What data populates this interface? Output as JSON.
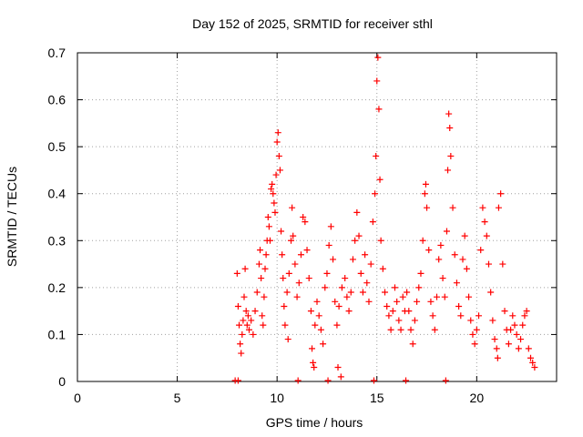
{
  "chart_data": {
    "type": "scatter",
    "title": "Day 152 of 2025, SRMTID for receiver sthl",
    "xlabel": "GPS time / hours",
    "ylabel": "SRMTID / TECUs",
    "xlim": [
      0,
      24
    ],
    "ylim": [
      0,
      0.7
    ],
    "x_ticks": [
      0,
      5,
      10,
      15,
      20
    ],
    "x_tick_labels": [
      "0",
      "5",
      "10",
      "15",
      "20"
    ],
    "y_ticks": [
      0,
      0.1,
      0.2,
      0.3,
      0.4,
      0.5,
      0.6,
      0.7
    ],
    "y_tick_labels": [
      "0",
      "0.1",
      "0.2",
      "0.3",
      "0.4",
      "0.5",
      "0.6",
      "0.7"
    ],
    "grid": true,
    "marker": "+",
    "series_color": "#ff0000",
    "series": [
      {
        "name": "SRMTID",
        "points": [
          [
            7.9,
            0.0
          ],
          [
            8.05,
            0.0
          ],
          [
            8.0,
            0.23
          ],
          [
            8.05,
            0.16
          ],
          [
            8.1,
            0.12
          ],
          [
            8.15,
            0.08
          ],
          [
            8.2,
            0.06
          ],
          [
            8.25,
            0.1
          ],
          [
            8.3,
            0.13
          ],
          [
            8.35,
            0.18
          ],
          [
            8.4,
            0.24
          ],
          [
            8.45,
            0.15
          ],
          [
            8.5,
            0.12
          ],
          [
            8.55,
            0.14
          ],
          [
            8.6,
            0.11
          ],
          [
            8.7,
            0.13
          ],
          [
            8.8,
            0.1
          ],
          [
            8.9,
            0.15
          ],
          [
            9.0,
            0.19
          ],
          [
            9.1,
            0.25
          ],
          [
            9.15,
            0.28
          ],
          [
            9.2,
            0.22
          ],
          [
            9.25,
            0.14
          ],
          [
            9.3,
            0.12
          ],
          [
            9.35,
            0.18
          ],
          [
            9.4,
            0.24
          ],
          [
            9.45,
            0.27
          ],
          [
            9.5,
            0.3
          ],
          [
            9.55,
            0.35
          ],
          [
            9.6,
            0.33
          ],
          [
            9.65,
            0.3
          ],
          [
            9.7,
            0.41
          ],
          [
            9.75,
            0.42
          ],
          [
            9.8,
            0.4
          ],
          [
            9.85,
            0.38
          ],
          [
            9.9,
            0.36
          ],
          [
            9.95,
            0.44
          ],
          [
            10.0,
            0.51
          ],
          [
            10.05,
            0.53
          ],
          [
            10.1,
            0.48
          ],
          [
            10.15,
            0.45
          ],
          [
            10.2,
            0.32
          ],
          [
            10.25,
            0.27
          ],
          [
            10.3,
            0.22
          ],
          [
            10.35,
            0.16
          ],
          [
            10.4,
            0.12
          ],
          [
            10.5,
            0.19
          ],
          [
            10.55,
            0.09
          ],
          [
            10.6,
            0.23
          ],
          [
            10.7,
            0.3
          ],
          [
            10.75,
            0.37
          ],
          [
            10.8,
            0.31
          ],
          [
            10.9,
            0.25
          ],
          [
            11.0,
            0.18
          ],
          [
            11.05,
            0.0
          ],
          [
            11.1,
            0.21
          ],
          [
            11.2,
            0.27
          ],
          [
            11.3,
            0.35
          ],
          [
            11.4,
            0.34
          ],
          [
            11.5,
            0.28
          ],
          [
            11.6,
            0.22
          ],
          [
            11.7,
            0.15
          ],
          [
            11.75,
            0.07
          ],
          [
            11.8,
            0.04
          ],
          [
            11.85,
            0.03
          ],
          [
            11.9,
            0.12
          ],
          [
            12.0,
            0.17
          ],
          [
            12.1,
            0.14
          ],
          [
            12.2,
            0.11
          ],
          [
            12.3,
            0.08
          ],
          [
            12.4,
            0.2
          ],
          [
            12.5,
            0.23
          ],
          [
            12.55,
            0.0
          ],
          [
            12.6,
            0.29
          ],
          [
            12.7,
            0.33
          ],
          [
            12.8,
            0.26
          ],
          [
            12.9,
            0.17
          ],
          [
            13.0,
            0.12
          ],
          [
            13.05,
            0.03
          ],
          [
            13.1,
            0.16
          ],
          [
            13.2,
            0.01
          ],
          [
            13.25,
            0.2
          ],
          [
            13.4,
            0.22
          ],
          [
            13.5,
            0.18
          ],
          [
            13.6,
            0.15
          ],
          [
            13.7,
            0.19
          ],
          [
            13.8,
            0.26
          ],
          [
            13.9,
            0.3
          ],
          [
            14.0,
            0.36
          ],
          [
            14.1,
            0.31
          ],
          [
            14.2,
            0.23
          ],
          [
            14.3,
            0.19
          ],
          [
            14.4,
            0.27
          ],
          [
            14.5,
            0.21
          ],
          [
            14.6,
            0.17
          ],
          [
            14.7,
            0.25
          ],
          [
            14.8,
            0.34
          ],
          [
            14.85,
            0.0
          ],
          [
            14.9,
            0.4
          ],
          [
            14.95,
            0.48
          ],
          [
            15.0,
            0.64
          ],
          [
            15.05,
            0.69
          ],
          [
            15.1,
            0.58
          ],
          [
            15.15,
            0.43
          ],
          [
            15.2,
            0.3
          ],
          [
            15.3,
            0.24
          ],
          [
            15.4,
            0.19
          ],
          [
            15.5,
            0.16
          ],
          [
            15.6,
            0.14
          ],
          [
            15.7,
            0.11
          ],
          [
            15.8,
            0.15
          ],
          [
            15.9,
            0.2
          ],
          [
            16.0,
            0.17
          ],
          [
            16.1,
            0.13
          ],
          [
            16.2,
            0.11
          ],
          [
            16.3,
            0.18
          ],
          [
            16.4,
            0.15
          ],
          [
            16.45,
            0.0
          ],
          [
            16.5,
            0.19
          ],
          [
            16.6,
            0.15
          ],
          [
            16.7,
            0.11
          ],
          [
            16.8,
            0.08
          ],
          [
            16.9,
            0.13
          ],
          [
            17.0,
            0.17
          ],
          [
            17.1,
            0.2
          ],
          [
            17.2,
            0.23
          ],
          [
            17.3,
            0.3
          ],
          [
            17.4,
            0.4
          ],
          [
            17.45,
            0.42
          ],
          [
            17.5,
            0.37
          ],
          [
            17.6,
            0.28
          ],
          [
            17.7,
            0.17
          ],
          [
            17.8,
            0.14
          ],
          [
            17.9,
            0.11
          ],
          [
            18.0,
            0.18
          ],
          [
            18.1,
            0.26
          ],
          [
            18.2,
            0.29
          ],
          [
            18.3,
            0.22
          ],
          [
            18.4,
            0.18
          ],
          [
            18.45,
            0.0
          ],
          [
            18.5,
            0.32
          ],
          [
            18.55,
            0.45
          ],
          [
            18.6,
            0.57
          ],
          [
            18.65,
            0.54
          ],
          [
            18.7,
            0.48
          ],
          [
            18.8,
            0.37
          ],
          [
            18.9,
            0.27
          ],
          [
            19.0,
            0.21
          ],
          [
            19.1,
            0.16
          ],
          [
            19.2,
            0.14
          ],
          [
            19.3,
            0.26
          ],
          [
            19.4,
            0.31
          ],
          [
            19.5,
            0.24
          ],
          [
            19.6,
            0.18
          ],
          [
            19.7,
            0.13
          ],
          [
            19.8,
            0.1
          ],
          [
            19.9,
            0.08
          ],
          [
            20.0,
            0.11
          ],
          [
            20.1,
            0.14
          ],
          [
            20.2,
            0.28
          ],
          [
            20.3,
            0.37
          ],
          [
            20.4,
            0.34
          ],
          [
            20.5,
            0.31
          ],
          [
            20.6,
            0.25
          ],
          [
            20.7,
            0.19
          ],
          [
            20.8,
            0.13
          ],
          [
            20.9,
            0.09
          ],
          [
            21.0,
            0.07
          ],
          [
            21.05,
            0.05
          ],
          [
            21.1,
            0.37
          ],
          [
            21.2,
            0.4
          ],
          [
            21.3,
            0.25
          ],
          [
            21.4,
            0.15
          ],
          [
            21.5,
            0.11
          ],
          [
            21.6,
            0.08
          ],
          [
            21.7,
            0.11
          ],
          [
            21.8,
            0.14
          ],
          [
            21.9,
            0.12
          ],
          [
            22.0,
            0.1
          ],
          [
            22.1,
            0.07
          ],
          [
            22.2,
            0.09
          ],
          [
            22.3,
            0.12
          ],
          [
            22.4,
            0.14
          ],
          [
            22.5,
            0.15
          ],
          [
            22.6,
            0.07
          ],
          [
            22.7,
            0.05
          ],
          [
            22.8,
            0.04
          ],
          [
            22.9,
            0.03
          ]
        ]
      }
    ]
  }
}
